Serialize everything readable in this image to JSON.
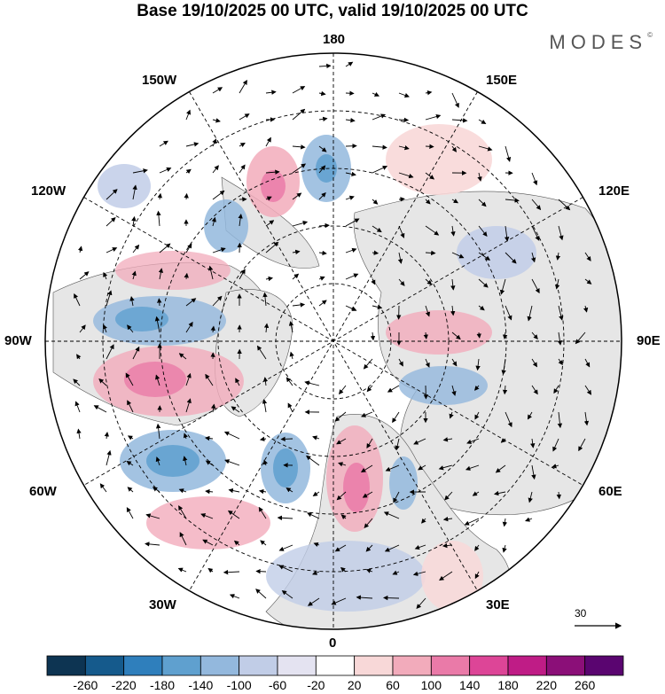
{
  "title": "Base 19/10/2025 00 UTC, valid 19/10/2025 00 UTC",
  "brand": "MODES",
  "brand_mark": "©",
  "longitude_labels": {
    "top": "180",
    "top_left": "150W",
    "top_right": "150E",
    "upper_left": "120W",
    "upper_right": "120E",
    "left": "90W",
    "right": "90E",
    "lower_left": "60W",
    "lower_right": "60E",
    "bottom_left": "30W",
    "bottom_right": "30E",
    "bottom": "0"
  },
  "vector_reference": "30",
  "colorbar": {
    "ticks": [
      "-260",
      "-220",
      "-180",
      "-140",
      "-100",
      "-60",
      "-20",
      "20",
      "60",
      "100",
      "140",
      "180",
      "220",
      "260"
    ],
    "colors": [
      "#0d3452",
      "#155a8c",
      "#2f7fbc",
      "#5fa0cf",
      "#93b8dd",
      "#c1cde7",
      "#e4e3f1",
      "#ffffff",
      "#f8d8d8",
      "#f2abbb",
      "#ea7aa8",
      "#dd4597",
      "#bf1c86",
      "#8b0f78",
      "#5a0570"
    ]
  },
  "colors": {
    "land": "#e6e6e6",
    "grid": "#000000"
  }
}
